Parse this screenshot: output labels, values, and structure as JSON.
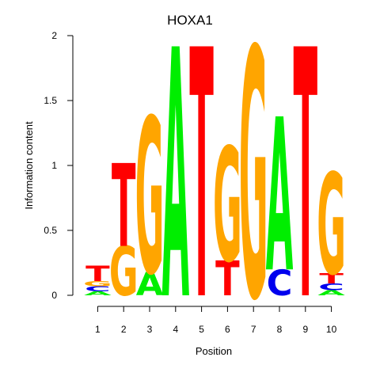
{
  "chart_data": {
    "type": "sequence-logo",
    "title": "HOXA1",
    "xlabel": "Position",
    "ylabel": "Information content",
    "ylim": [
      0,
      2
    ],
    "y_ticks": [
      "0",
      "0.5",
      "1",
      "1.5",
      "2"
    ],
    "y_tick_values": [
      0,
      0.5,
      1,
      1.5,
      2
    ],
    "positions": [
      "1",
      "2",
      "3",
      "4",
      "5",
      "6",
      "7",
      "8",
      "9",
      "10"
    ],
    "colors": {
      "A": "#00ee00",
      "C": "#0000ee",
      "G": "#ffa500",
      "T": "#ff0000"
    },
    "stacks": [
      [
        {
          "base": "A",
          "bits": 0.03
        },
        {
          "base": "C",
          "bits": 0.04
        },
        {
          "base": "G",
          "bits": 0.04
        },
        {
          "base": "T",
          "bits": 0.12
        }
      ],
      [
        {
          "base": "G",
          "bits": 0.38
        },
        {
          "base": "T",
          "bits": 0.64
        }
      ],
      [
        {
          "base": "A",
          "bits": 0.18
        },
        {
          "base": "G",
          "bits": 1.2
        }
      ],
      [
        {
          "base": "A",
          "bits": 1.92
        }
      ],
      [
        {
          "base": "T",
          "bits": 1.92
        }
      ],
      [
        {
          "base": "T",
          "bits": 0.27
        },
        {
          "base": "G",
          "bits": 0.88
        }
      ],
      [
        {
          "base": "G",
          "bits": 1.92
        }
      ],
      [
        {
          "base": "C",
          "bits": 0.2
        },
        {
          "base": "A",
          "bits": 1.18
        }
      ],
      [
        {
          "base": "T",
          "bits": 1.92
        }
      ],
      [
        {
          "base": "A",
          "bits": 0.04
        },
        {
          "base": "C",
          "bits": 0.05
        },
        {
          "base": "T",
          "bits": 0.08
        },
        {
          "base": "G",
          "bits": 0.78
        }
      ]
    ]
  }
}
